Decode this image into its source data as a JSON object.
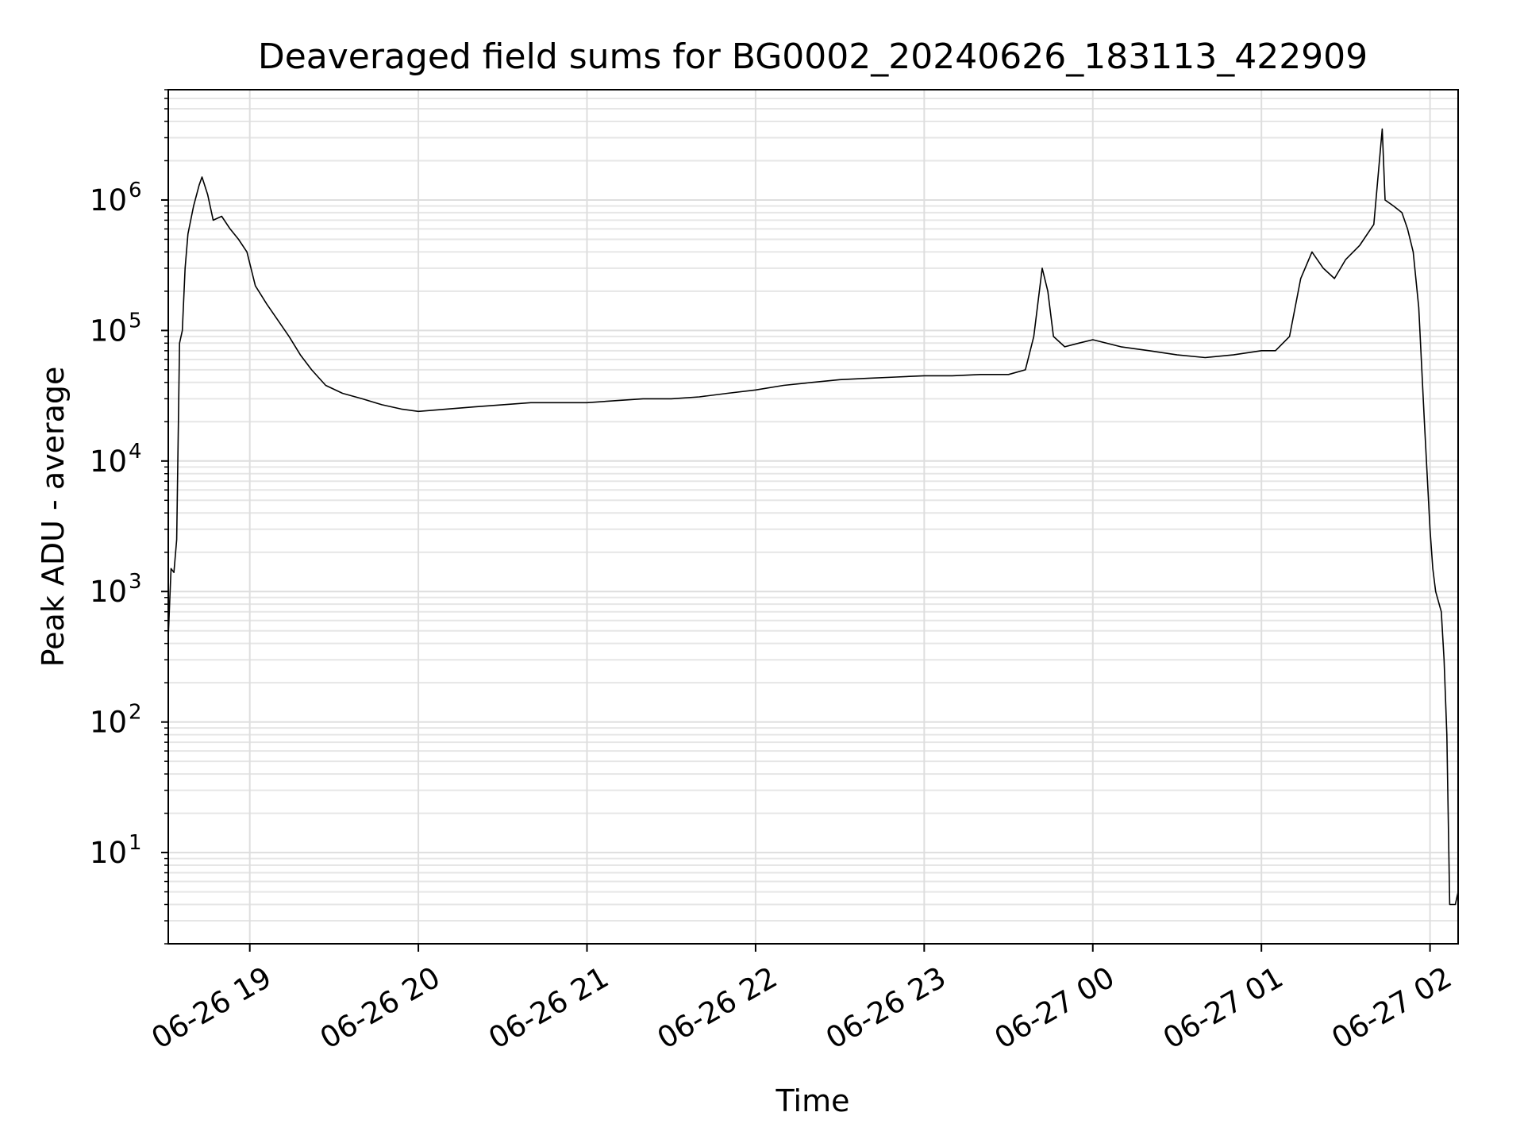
{
  "chart_data": {
    "type": "line",
    "title": "Deaveraged field sums for BG0002_20240626_183113_422909",
    "xlabel": "Time",
    "ylabel": "Peak ADU - average",
    "yscale": "log",
    "ylim": [
      2,
      7000000
    ],
    "xlim": [
      "2024-06-26 18:31",
      "2024-06-27 02:10"
    ],
    "grid": true,
    "x_ticks": [
      {
        "value": "2024-06-26 19:00",
        "label": "06-26 19"
      },
      {
        "value": "2024-06-26 20:00",
        "label": "06-26 20"
      },
      {
        "value": "2024-06-26 21:00",
        "label": "06-26 21"
      },
      {
        "value": "2024-06-26 22:00",
        "label": "06-26 22"
      },
      {
        "value": "2024-06-26 23:00",
        "label": "06-26 23"
      },
      {
        "value": "2024-06-27 00:00",
        "label": "06-27 00"
      },
      {
        "value": "2024-06-27 01:00",
        "label": "06-27 01"
      },
      {
        "value": "2024-06-27 02:00",
        "label": "06-27 02"
      }
    ],
    "y_ticks": [
      {
        "value": 10,
        "base": "10",
        "exp": "1"
      },
      {
        "value": 100,
        "base": "10",
        "exp": "2"
      },
      {
        "value": 1000,
        "base": "10",
        "exp": "3"
      },
      {
        "value": 10000,
        "base": "10",
        "exp": "4"
      },
      {
        "value": 100000,
        "base": "10",
        "exp": "5"
      },
      {
        "value": 1000000,
        "base": "10",
        "exp": "6"
      }
    ],
    "series": [
      {
        "color": "#000000",
        "points": [
          [
            "2024-06-26 18:31",
            450
          ],
          [
            "2024-06-26 18:32",
            1500
          ],
          [
            "2024-06-26 18:33",
            1400
          ],
          [
            "2024-06-26 18:34",
            2500
          ],
          [
            "2024-06-26 18:35",
            80000
          ],
          [
            "2024-06-26 18:36",
            100000
          ],
          [
            "2024-06-26 18:37",
            300000
          ],
          [
            "2024-06-26 18:38",
            550000
          ],
          [
            "2024-06-26 18:40",
            900000
          ],
          [
            "2024-06-26 18:42",
            1300000
          ],
          [
            "2024-06-26 18:43",
            1500000
          ],
          [
            "2024-06-26 18:45",
            1100000
          ],
          [
            "2024-06-26 18:47",
            700000
          ],
          [
            "2024-06-26 18:50",
            750000
          ],
          [
            "2024-06-26 18:53",
            600000
          ],
          [
            "2024-06-26 18:56",
            500000
          ],
          [
            "2024-06-26 18:59",
            400000
          ],
          [
            "2024-06-26 19:02",
            220000
          ],
          [
            "2024-06-26 19:06",
            160000
          ],
          [
            "2024-06-26 19:10",
            120000
          ],
          [
            "2024-06-26 19:14",
            90000
          ],
          [
            "2024-06-26 19:18",
            65000
          ],
          [
            "2024-06-26 19:22",
            50000
          ],
          [
            "2024-06-26 19:27",
            38000
          ],
          [
            "2024-06-26 19:33",
            33000
          ],
          [
            "2024-06-26 19:40",
            30000
          ],
          [
            "2024-06-26 19:47",
            27000
          ],
          [
            "2024-06-26 19:54",
            25000
          ],
          [
            "2024-06-26 20:00",
            24000
          ],
          [
            "2024-06-26 20:10",
            25000
          ],
          [
            "2024-06-26 20:20",
            26000
          ],
          [
            "2024-06-26 20:30",
            27000
          ],
          [
            "2024-06-26 20:40",
            28000
          ],
          [
            "2024-06-26 20:50",
            28000
          ],
          [
            "2024-06-26 21:00",
            28000
          ],
          [
            "2024-06-26 21:10",
            29000
          ],
          [
            "2024-06-26 21:20",
            30000
          ],
          [
            "2024-06-26 21:30",
            30000
          ],
          [
            "2024-06-26 21:40",
            31000
          ],
          [
            "2024-06-26 21:50",
            33000
          ],
          [
            "2024-06-26 22:00",
            35000
          ],
          [
            "2024-06-26 22:10",
            38000
          ],
          [
            "2024-06-26 22:20",
            40000
          ],
          [
            "2024-06-26 22:30",
            42000
          ],
          [
            "2024-06-26 22:40",
            43000
          ],
          [
            "2024-06-26 22:50",
            44000
          ],
          [
            "2024-06-26 23:00",
            45000
          ],
          [
            "2024-06-26 23:10",
            45000
          ],
          [
            "2024-06-26 23:20",
            46000
          ],
          [
            "2024-06-26 23:30",
            46000
          ],
          [
            "2024-06-26 23:36",
            50000
          ],
          [
            "2024-06-26 23:39",
            90000
          ],
          [
            "2024-06-26 23:42",
            300000
          ],
          [
            "2024-06-26 23:44",
            200000
          ],
          [
            "2024-06-26 23:46",
            90000
          ],
          [
            "2024-06-26 23:50",
            75000
          ],
          [
            "2024-06-26 23:55",
            80000
          ],
          [
            "2024-06-27 00:00",
            85000
          ],
          [
            "2024-06-27 00:10",
            75000
          ],
          [
            "2024-06-27 00:20",
            70000
          ],
          [
            "2024-06-27 00:30",
            65000
          ],
          [
            "2024-06-27 00:40",
            62000
          ],
          [
            "2024-06-27 00:50",
            65000
          ],
          [
            "2024-06-27 01:00",
            70000
          ],
          [
            "2024-06-27 01:05",
            70000
          ],
          [
            "2024-06-27 01:10",
            90000
          ],
          [
            "2024-06-27 01:14",
            250000
          ],
          [
            "2024-06-27 01:18",
            400000
          ],
          [
            "2024-06-27 01:22",
            300000
          ],
          [
            "2024-06-27 01:26",
            250000
          ],
          [
            "2024-06-27 01:30",
            350000
          ],
          [
            "2024-06-27 01:35",
            450000
          ],
          [
            "2024-06-27 01:40",
            650000
          ],
          [
            "2024-06-27 01:43",
            3500000
          ],
          [
            "2024-06-27 01:44",
            1000000
          ],
          [
            "2024-06-27 01:47",
            900000
          ],
          [
            "2024-06-27 01:50",
            800000
          ],
          [
            "2024-06-27 01:52",
            600000
          ],
          [
            "2024-06-27 01:54",
            400000
          ],
          [
            "2024-06-27 01:56",
            150000
          ],
          [
            "2024-06-27 01:58",
            20000
          ],
          [
            "2024-06-27 02:00",
            3000
          ],
          [
            "2024-06-27 02:01",
            1500
          ],
          [
            "2024-06-27 02:02",
            1000
          ],
          [
            "2024-06-27 02:04",
            700
          ],
          [
            "2024-06-27 02:05",
            300
          ],
          [
            "2024-06-27 02:06",
            80
          ],
          [
            "2024-06-27 02:07",
            4
          ],
          [
            "2024-06-27 02:09",
            4
          ],
          [
            "2024-06-27 02:10",
            5
          ]
        ]
      }
    ]
  }
}
